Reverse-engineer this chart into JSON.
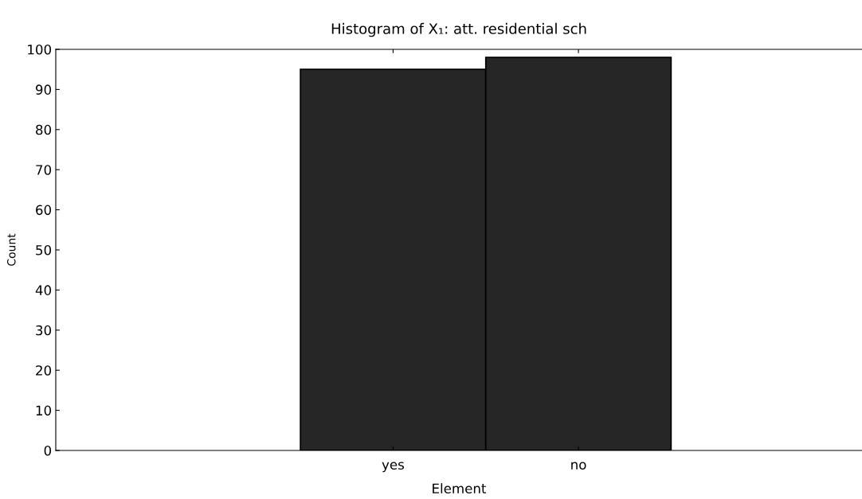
{
  "chart_data": {
    "type": "bar",
    "title": "Histogram of X₁: att. residential sch",
    "xlabel": "Element",
    "ylabel": "Count",
    "categories": [
      "yes",
      "no"
    ],
    "values": [
      95,
      98
    ],
    "color": "#262626",
    "ylim": [
      0,
      100
    ],
    "yticks": [
      0,
      10,
      20,
      30,
      40,
      50,
      60,
      70,
      80,
      90,
      100
    ],
    "grid": false
  }
}
